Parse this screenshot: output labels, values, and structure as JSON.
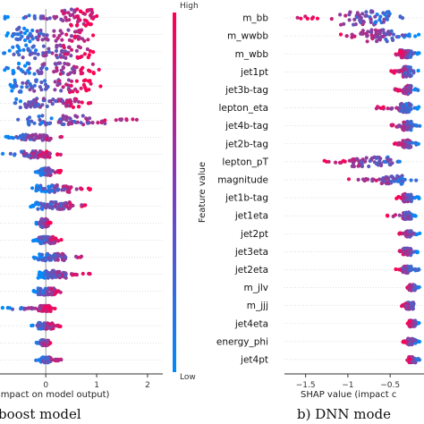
{
  "chart_data": [
    {
      "type": "scatter",
      "subtype": "shap-beeswarm",
      "caption": "boost model",
      "xlabel": "impact on model output)",
      "xticks": [
        0,
        1,
        2
      ],
      "xlim": [
        -0.9,
        2.3
      ],
      "rows": [
        {
          "min": -0.85,
          "max": 1.05,
          "q1": 0.3,
          "q3": 0.95,
          "width": 1.0
        },
        {
          "min": -0.85,
          "max": 1.0,
          "q1": -0.6,
          "q3": 0.85,
          "width": 0.85
        },
        {
          "min": -0.85,
          "max": 1.05,
          "q1": -0.7,
          "q3": 0.9,
          "width": 0.8
        },
        {
          "min": -0.85,
          "max": 1.25,
          "q1": -0.7,
          "q3": 1.0,
          "width": 0.7
        },
        {
          "min": -0.85,
          "max": 1.1,
          "q1": -0.7,
          "q3": 0.9,
          "width": 0.75
        },
        {
          "min": -0.85,
          "max": 1.0,
          "q1": -0.6,
          "q3": 0.7,
          "width": 0.55
        },
        {
          "min": -0.75,
          "max": 2.0,
          "q1": -0.4,
          "q3": 1.2,
          "width": 0.55
        },
        {
          "min": -0.85,
          "max": 0.4,
          "q1": -0.5,
          "q3": 0.1,
          "width": 0.35
        },
        {
          "min": -0.85,
          "max": 0.3,
          "q1": -0.5,
          "q3": 0.1,
          "width": 0.4
        },
        {
          "min": -0.2,
          "max": 0.3,
          "q1": -0.1,
          "q3": 0.1,
          "width": 0.45
        },
        {
          "min": -0.3,
          "max": 0.9,
          "q1": -0.2,
          "q3": 0.5,
          "width": 0.45
        },
        {
          "min": -0.3,
          "max": 0.85,
          "q1": -0.2,
          "q3": 0.5,
          "width": 0.45
        },
        {
          "min": -0.2,
          "max": 0.1,
          "q1": -0.1,
          "q3": 0.05,
          "width": 0.5
        },
        {
          "min": -0.25,
          "max": 0.35,
          "q1": -0.15,
          "q3": 0.2,
          "width": 0.4
        },
        {
          "min": -0.25,
          "max": 0.85,
          "q1": -0.15,
          "q3": 0.4,
          "width": 0.45
        },
        {
          "min": -0.25,
          "max": 0.9,
          "q1": -0.15,
          "q3": 0.4,
          "width": 0.45
        },
        {
          "min": -0.25,
          "max": 0.35,
          "q1": -0.15,
          "q3": 0.2,
          "width": 0.4
        },
        {
          "min": -0.85,
          "max": 0.2,
          "q1": -0.15,
          "q3": 0.1,
          "width": 0.4
        },
        {
          "min": -0.3,
          "max": 0.3,
          "q1": -0.15,
          "q3": 0.15,
          "width": 0.4
        },
        {
          "min": -0.2,
          "max": 0.1,
          "q1": -0.1,
          "q3": 0.05,
          "width": 0.35
        },
        {
          "min": -0.2,
          "max": 0.35,
          "q1": -0.1,
          "q3": 0.1,
          "width": 0.35
        }
      ]
    },
    {
      "type": "scatter",
      "subtype": "shap-beeswarm",
      "caption": "b) DNN mode",
      "xlabel": "SHAP value (impact c",
      "xticks": [
        -1.5,
        -1.0,
        -0.5
      ],
      "xlim": [
        -1.75,
        -0.1
      ],
      "features": [
        "m_bb",
        "m_wwbb",
        "m_wbb",
        "jet1pt",
        "jet3b-tag",
        "lepton_eta",
        "jet4b-tag",
        "jet2b-tag",
        "lepton_pT",
        "magnitude",
        "jet1b-tag",
        "jet1eta",
        "jet2pt",
        "jet3eta",
        "jet2eta",
        "m_jlv",
        "m_jjj",
        "jet4eta",
        "energy_phi",
        "jet4pt"
      ],
      "rows": [
        {
          "min": -1.62,
          "max": -0.15,
          "q1": -1.1,
          "q3": -0.5,
          "width": 0.8
        },
        {
          "min": -1.1,
          "max": -0.15,
          "q1": -0.85,
          "q3": -0.45,
          "width": 0.7
        },
        {
          "min": -0.45,
          "max": -0.15,
          "q1": -0.4,
          "q3": -0.25,
          "width": 0.45
        },
        {
          "min": -0.5,
          "max": -0.15,
          "q1": -0.35,
          "q3": -0.25,
          "width": 0.6
        },
        {
          "min": -0.45,
          "max": -0.15,
          "q1": -0.35,
          "q3": -0.25,
          "width": 0.5
        },
        {
          "min": -0.7,
          "max": -0.15,
          "q1": -0.4,
          "q3": -0.25,
          "width": 0.5
        },
        {
          "min": -0.5,
          "max": -0.15,
          "q1": -0.35,
          "q3": -0.25,
          "width": 0.5
        },
        {
          "min": -0.45,
          "max": -0.15,
          "q1": -0.35,
          "q3": -0.25,
          "width": 0.45
        },
        {
          "min": -1.35,
          "max": -0.15,
          "q1": -0.95,
          "q3": -0.45,
          "width": 0.55
        },
        {
          "min": -1.0,
          "max": -0.15,
          "q1": -0.6,
          "q3": -0.35,
          "width": 0.5
        },
        {
          "min": -0.45,
          "max": -0.15,
          "q1": -0.35,
          "q3": -0.25,
          "width": 0.45
        },
        {
          "min": -0.55,
          "max": -0.15,
          "q1": -0.35,
          "q3": -0.25,
          "width": 0.4
        },
        {
          "min": -0.4,
          "max": -0.15,
          "q1": -0.32,
          "q3": -0.25,
          "width": 0.35
        },
        {
          "min": -0.45,
          "max": -0.15,
          "q1": -0.35,
          "q3": -0.25,
          "width": 0.4
        },
        {
          "min": -0.45,
          "max": -0.15,
          "q1": -0.35,
          "q3": -0.25,
          "width": 0.4
        },
        {
          "min": -0.3,
          "max": -0.15,
          "q1": -0.28,
          "q3": -0.2,
          "width": 0.35
        },
        {
          "min": -0.4,
          "max": -0.15,
          "q1": -0.32,
          "q3": -0.22,
          "width": 0.4
        },
        {
          "min": -0.3,
          "max": -0.15,
          "q1": -0.28,
          "q3": -0.2,
          "width": 0.35
        },
        {
          "min": -0.35,
          "max": -0.15,
          "q1": -0.3,
          "q3": -0.2,
          "width": 0.35
        },
        {
          "min": -0.3,
          "max": -0.15,
          "q1": -0.28,
          "q3": -0.2,
          "width": 0.35
        }
      ]
    }
  ],
  "colorbar": {
    "label": "Feature value",
    "high": "High",
    "low": "Low",
    "color_high": "#ff0052",
    "color_low": "#008bfb"
  }
}
